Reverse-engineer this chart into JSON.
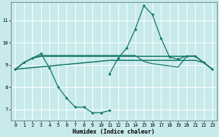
{
  "xlabel": "Humidex (Indice chaleur)",
  "bg_color": "#c8eaea",
  "grid_color": "#ffffff",
  "line_color": "#1a7a6e",
  "xlim": [
    -0.5,
    23.5
  ],
  "ylim": [
    6.5,
    11.8
  ],
  "yticks": [
    7,
    8,
    9,
    10,
    11
  ],
  "xticks": [
    0,
    1,
    2,
    3,
    4,
    5,
    6,
    7,
    8,
    9,
    10,
    11,
    12,
    13,
    14,
    15,
    16,
    17,
    18,
    19,
    20,
    21,
    22,
    23
  ],
  "series": [
    {
      "x": [
        0,
        1,
        2,
        3,
        4,
        5,
        6,
        7,
        8,
        9,
        10,
        11
      ],
      "y": [
        8.8,
        9.1,
        9.3,
        9.5,
        8.85,
        8.0,
        7.5,
        7.1,
        7.1,
        6.85,
        6.85,
        6.95
      ],
      "marker": true,
      "lw": 1.0
    },
    {
      "x": [
        11,
        12,
        13,
        14,
        15,
        16,
        17,
        18,
        19,
        20,
        21,
        22,
        23
      ],
      "y": [
        8.6,
        9.3,
        9.75,
        10.6,
        11.65,
        11.25,
        10.2,
        9.35,
        9.25,
        9.4,
        9.4,
        9.1,
        8.8
      ],
      "marker": true,
      "lw": 1.0
    },
    {
      "x": [
        0,
        1,
        2,
        3,
        4,
        5,
        6,
        7,
        8,
        9,
        10,
        11,
        12,
        13,
        14,
        15,
        16,
        17,
        18,
        19,
        20,
        21,
        22,
        23
      ],
      "y": [
        8.8,
        9.1,
        9.3,
        9.38,
        9.38,
        9.38,
        9.38,
        9.38,
        9.38,
        9.38,
        9.38,
        9.38,
        9.38,
        9.38,
        9.38,
        9.38,
        9.38,
        9.38,
        9.38,
        9.38,
        9.38,
        9.38,
        9.1,
        8.8
      ],
      "marker": false,
      "lw": 1.2
    },
    {
      "x": [
        0,
        1,
        2,
        3,
        4,
        5,
        6,
        7,
        8,
        9,
        10,
        11,
        12,
        13,
        14,
        15,
        16,
        17,
        18,
        19,
        20,
        21,
        22,
        23
      ],
      "y": [
        8.8,
        9.1,
        9.3,
        9.42,
        9.42,
        9.42,
        9.42,
        9.42,
        9.42,
        9.42,
        9.42,
        9.42,
        9.42,
        9.42,
        9.42,
        9.15,
        9.05,
        9.0,
        8.95,
        8.9,
        9.38,
        9.38,
        9.1,
        8.8
      ],
      "marker": false,
      "lw": 1.0
    },
    {
      "x": [
        0,
        11,
        12,
        13,
        14,
        15,
        16,
        17,
        18,
        19,
        20,
        21,
        22,
        23
      ],
      "y": [
        8.8,
        9.2,
        9.2,
        9.2,
        9.2,
        9.2,
        9.2,
        9.2,
        9.2,
        9.2,
        9.2,
        9.2,
        9.1,
        8.8
      ],
      "marker": false,
      "lw": 1.2
    }
  ]
}
